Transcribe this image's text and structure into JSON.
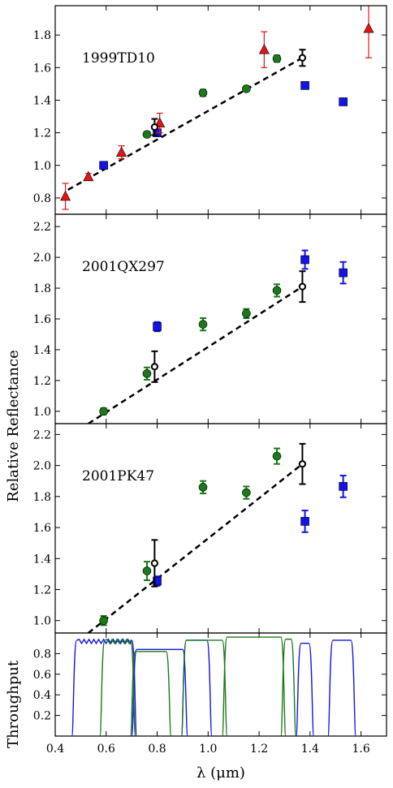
{
  "figure": {
    "ylabel_main": "Relative Reflectance",
    "ylabel_throughput": "Throughput",
    "xlabel": "λ (μm)",
    "xlim": [
      0.4,
      1.7
    ],
    "xticks": [
      0.4,
      0.6,
      0.8,
      1.0,
      1.2,
      1.4,
      1.6
    ],
    "xtick_labels": [
      "0.4",
      "0.6",
      "0.8",
      "1.0",
      "1.2",
      "1.4",
      "1.6"
    ]
  },
  "colors": {
    "green": "#1a7a1a",
    "blue": "#1414e6",
    "red": "#e61414",
    "black": "#000000"
  },
  "chart_data": [
    {
      "type": "scatter",
      "label": "1999TD10",
      "ylim": [
        0.7,
        1.98
      ],
      "yticks": [
        0.8,
        1.0,
        1.2,
        1.4,
        1.6,
        1.8
      ],
      "ytick_labels": [
        "0.8",
        "1.0",
        "1.2",
        "1.4",
        "1.6",
        "1.8"
      ],
      "fit_line": {
        "x": [
          0.45,
          1.37
        ],
        "y": [
          0.85,
          1.66
        ]
      },
      "series": [
        {
          "marker": "circle",
          "color": "green",
          "points": [
            {
              "x": 0.59,
              "y": 1.0,
              "err": 0.01
            },
            {
              "x": 0.76,
              "y": 1.19,
              "err": 0.015
            },
            {
              "x": 0.98,
              "y": 1.445,
              "err": 0.02
            },
            {
              "x": 1.15,
              "y": 1.47,
              "err": 0.015
            },
            {
              "x": 1.27,
              "y": 1.655,
              "err": 0.02
            }
          ]
        },
        {
          "marker": "square",
          "color": "blue",
          "points": [
            {
              "x": 0.59,
              "y": 1.0,
              "err": 0.01
            },
            {
              "x": 0.8,
              "y": 1.2,
              "err": 0.02
            },
            {
              "x": 1.38,
              "y": 1.49,
              "err": 0.015
            },
            {
              "x": 1.53,
              "y": 1.39,
              "err": 0.02
            }
          ]
        },
        {
          "marker": "triangle",
          "color": "red",
          "points": [
            {
              "x": 0.44,
              "y": 0.81,
              "err": 0.08
            },
            {
              "x": 0.53,
              "y": 0.93,
              "err": 0.02
            },
            {
              "x": 0.66,
              "y": 1.08,
              "err": 0.04
            },
            {
              "x": 0.81,
              "y": 1.26,
              "err": 0.06
            },
            {
              "x": 1.22,
              "y": 1.71,
              "err": 0.11
            },
            {
              "x": 1.63,
              "y": 1.84,
              "err": 0.18
            }
          ]
        },
        {
          "marker": "open-circle",
          "color": "black",
          "points": [
            {
              "x": 0.79,
              "y": 1.235,
              "err": 0.05
            },
            {
              "x": 1.37,
              "y": 1.66,
              "err": 0.05
            }
          ]
        }
      ]
    },
    {
      "type": "scatter",
      "label": "2001QX297",
      "ylim": [
        0.92,
        2.28
      ],
      "yticks": [
        1.0,
        1.2,
        1.4,
        1.6,
        1.8,
        2.0,
        2.2
      ],
      "ytick_labels": [
        "1.0",
        "1.2",
        "1.4",
        "1.6",
        "1.8",
        "2.0",
        "2.2"
      ],
      "fit_line": {
        "x": [
          0.53,
          1.37
        ],
        "y": [
          0.92,
          1.81
        ]
      },
      "series": [
        {
          "marker": "circle",
          "color": "green",
          "points": [
            {
              "x": 0.59,
              "y": 1.0,
              "err": 0.02
            },
            {
              "x": 0.76,
              "y": 1.245,
              "err": 0.04
            },
            {
              "x": 0.98,
              "y": 1.565,
              "err": 0.04
            },
            {
              "x": 1.15,
              "y": 1.635,
              "err": 0.03
            },
            {
              "x": 1.27,
              "y": 1.785,
              "err": 0.04
            }
          ]
        },
        {
          "marker": "square",
          "color": "blue",
          "points": [
            {
              "x": 0.8,
              "y": 1.55,
              "err": 0.03
            },
            {
              "x": 1.38,
              "y": 1.985,
              "err": 0.06
            },
            {
              "x": 1.53,
              "y": 1.9,
              "err": 0.07
            }
          ]
        },
        {
          "marker": "open-circle",
          "color": "black",
          "points": [
            {
              "x": 0.79,
              "y": 1.29,
              "err": 0.1
            },
            {
              "x": 1.37,
              "y": 1.81,
              "err": 0.1
            }
          ]
        }
      ]
    },
    {
      "type": "scatter",
      "label": "2001PK47",
      "ylim": [
        0.92,
        2.27
      ],
      "yticks": [
        1.0,
        1.2,
        1.4,
        1.6,
        1.8,
        2.0,
        2.2
      ],
      "ytick_labels": [
        "1.0",
        "1.2",
        "1.4",
        "1.6",
        "1.8",
        "2.0",
        "2.2"
      ],
      "fit_line": {
        "x": [
          0.53,
          1.37
        ],
        "y": [
          0.92,
          2.01
        ]
      },
      "series": [
        {
          "marker": "circle",
          "color": "green",
          "points": [
            {
              "x": 0.59,
              "y": 1.0,
              "err": 0.03
            },
            {
              "x": 0.76,
              "y": 1.32,
              "err": 0.06
            },
            {
              "x": 0.98,
              "y": 1.86,
              "err": 0.04
            },
            {
              "x": 1.15,
              "y": 1.825,
              "err": 0.04
            },
            {
              "x": 1.27,
              "y": 2.06,
              "err": 0.05
            }
          ]
        },
        {
          "marker": "square",
          "color": "blue",
          "points": [
            {
              "x": 0.8,
              "y": 1.255,
              "err": 0.03
            },
            {
              "x": 1.38,
              "y": 1.64,
              "err": 0.07
            },
            {
              "x": 1.53,
              "y": 1.865,
              "err": 0.07
            }
          ]
        },
        {
          "marker": "open-circle",
          "color": "black",
          "points": [
            {
              "x": 0.79,
              "y": 1.37,
              "err": 0.15
            },
            {
              "x": 1.37,
              "y": 2.01,
              "err": 0.13
            }
          ]
        }
      ]
    },
    {
      "type": "line",
      "label": "Throughput",
      "ylim": [
        0,
        1.0
      ],
      "yticks": [
        0.2,
        0.4,
        0.6,
        0.8
      ],
      "ytick_labels": [
        "0.2",
        "0.4",
        "0.6",
        "0.8"
      ],
      "series": [
        {
          "color": "blue",
          "filters": [
            {
              "lo": 0.475,
              "hi": 0.71,
              "level": 0.93,
              "ripple": true
            },
            {
              "lo": 0.71,
              "hi": 0.91,
              "level": 0.84
            },
            {
              "lo": 0.905,
              "hi": 1.005,
              "level": 0.93
            },
            {
              "lo": 1.355,
              "hi": 1.405,
              "level": 0.9
            },
            {
              "lo": 1.48,
              "hi": 1.57,
              "level": 0.93
            }
          ]
        },
        {
          "color": "green",
          "filters": [
            {
              "lo": 0.585,
              "hi": 0.705,
              "level": 0.93,
              "ripple": true
            },
            {
              "lo": 0.705,
              "hi": 0.845,
              "level": 0.82
            },
            {
              "lo": 0.905,
              "hi": 1.065,
              "level": 0.93
            },
            {
              "lo": 1.065,
              "hi": 1.295,
              "level": 0.96
            },
            {
              "lo": 1.295,
              "hi": 1.335,
              "level": 0.94
            }
          ]
        }
      ]
    }
  ]
}
